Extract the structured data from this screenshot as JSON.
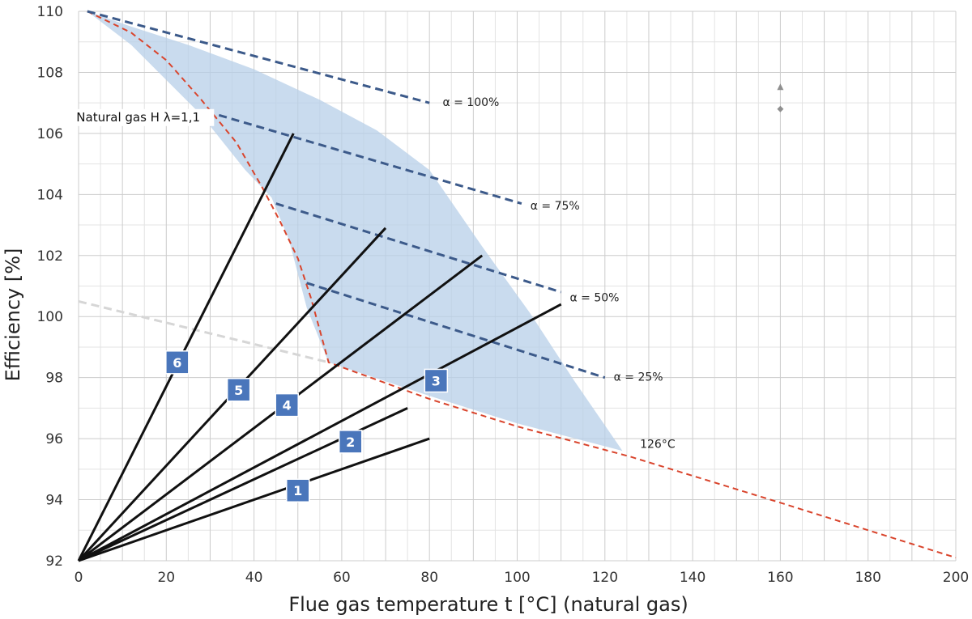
{
  "chart_data": {
    "type": "line",
    "xlabel": "Flue gas temperature t [°C] (natural gas)",
    "ylabel": "Efficiency [%]",
    "xlim": [
      0,
      200
    ],
    "ylim": [
      92,
      110
    ],
    "x_ticks": [
      0,
      20,
      40,
      60,
      80,
      100,
      120,
      140,
      160,
      180,
      200
    ],
    "y_ticks": [
      92,
      94,
      96,
      98,
      100,
      102,
      104,
      106,
      108,
      110
    ],
    "grid": true,
    "colors": {
      "grid": "#cccccc",
      "red_dashed": "#d9442c",
      "blue_dashed": "#3c5a8a",
      "gray_dashed": "#d6d6d6",
      "shade": "#b7cfe8",
      "black": "#111111",
      "box": "#4a76bb"
    },
    "shaded_region": {
      "x": [
        2,
        12,
        25,
        40,
        55,
        68,
        80,
        92,
        103,
        113,
        124,
        100,
        80,
        57,
        52,
        48,
        44,
        38,
        28,
        12,
        2
      ],
      "y": [
        110,
        109.5,
        108.9,
        108.1,
        107.1,
        106.1,
        104.8,
        102.3,
        100.1,
        97.9,
        95.6,
        96.5,
        97.4,
        98.5,
        100.3,
        102.5,
        103.9,
        104.8,
        106.6,
        108.9,
        110
      ]
    },
    "series": [
      {
        "name": "Natural gas H λ=1,1",
        "style": "red-dashed",
        "x": [
          2,
          12,
          20,
          28,
          36,
          42,
          46,
          50,
          53,
          57,
          80,
          100,
          126,
          160,
          200
        ],
        "y": [
          110,
          109.3,
          108.4,
          107.1,
          105.7,
          104.2,
          103.1,
          101.9,
          100.6,
          98.5,
          97.3,
          96.4,
          95.4,
          93.9,
          92.1
        ]
      },
      {
        "name": "α = 100%",
        "style": "blue-dashed",
        "x": [
          2,
          80
        ],
        "y": [
          110,
          107
        ]
      },
      {
        "name": "α = 75%",
        "style": "blue-dashed",
        "x": [
          32,
          101
        ],
        "y": [
          106.6,
          103.7
        ]
      },
      {
        "name": "α = 50%",
        "style": "blue-dashed",
        "x": [
          45,
          110
        ],
        "y": [
          103.7,
          100.8
        ]
      },
      {
        "name": "α = 25%",
        "style": "blue-dashed",
        "x": [
          52,
          120
        ],
        "y": [
          101.1,
          98
        ]
      },
      {
        "name": "",
        "style": "gray-dashed",
        "x": [
          0,
          57
        ],
        "y": [
          100.5,
          98.5
        ]
      },
      {
        "name": "1",
        "style": "black-solid",
        "x": [
          0,
          80
        ],
        "y": [
          92,
          96
        ]
      },
      {
        "name": "2",
        "style": "black-solid",
        "x": [
          0,
          75
        ],
        "y": [
          92,
          97
        ]
      },
      {
        "name": "3",
        "style": "black-solid",
        "x": [
          0,
          110
        ],
        "y": [
          92,
          100.4
        ]
      },
      {
        "name": "4",
        "style": "black-solid",
        "x": [
          0,
          92
        ],
        "y": [
          92,
          102
        ]
      },
      {
        "name": "5",
        "style": "black-solid",
        "x": [
          0,
          70
        ],
        "y": [
          92,
          102.9
        ]
      },
      {
        "name": "6",
        "style": "black-solid",
        "x": [
          0,
          49
        ],
        "y": [
          92,
          106
        ]
      }
    ],
    "annotations": [
      {
        "id": "gas",
        "text": "Natural gas H λ=1,1",
        "x": -0.5,
        "y": 106.4,
        "class": "anno-big"
      },
      {
        "id": "a100",
        "text": "α = 100%",
        "x": 83,
        "y": 106.9,
        "class": "anno"
      },
      {
        "id": "a75",
        "text": "α = 75%",
        "x": 103,
        "y": 103.5,
        "class": "anno"
      },
      {
        "id": "a50",
        "text": "α = 50%",
        "x": 112,
        "y": 100.5,
        "class": "anno"
      },
      {
        "id": "a25",
        "text": "α = 25%",
        "x": 122,
        "y": 97.9,
        "class": "anno"
      },
      {
        "id": "t126",
        "text": "126°C",
        "x": 128,
        "y": 95.7,
        "class": "anno"
      }
    ],
    "boxes": [
      {
        "label": "1",
        "x": 50,
        "y": 94.3
      },
      {
        "label": "2",
        "x": 62,
        "y": 95.9
      },
      {
        "label": "3",
        "x": 81.5,
        "y": 97.9
      },
      {
        "label": "4",
        "x": 47.5,
        "y": 97.1
      },
      {
        "label": "5",
        "x": 36.5,
        "y": 97.6
      },
      {
        "label": "6",
        "x": 22.5,
        "y": 98.5
      }
    ],
    "markers": [
      {
        "shape": "triangle",
        "x": 160,
        "y": 107.5
      },
      {
        "shape": "diamond",
        "x": 160,
        "y": 106.8
      }
    ]
  }
}
